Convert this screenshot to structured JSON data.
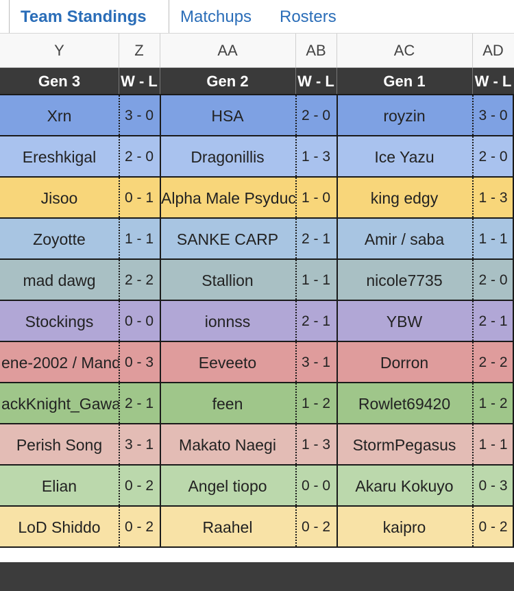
{
  "tabs": [
    {
      "label": "Team Standings",
      "active": true
    },
    {
      "label": "Matchups",
      "active": false
    },
    {
      "label": "Rosters",
      "active": false
    }
  ],
  "column_letters": [
    "Y",
    "Z",
    "AA",
    "AB",
    "AC",
    "AD"
  ],
  "header": {
    "gen3": "Gen 3",
    "wl1": "W - L",
    "gen2": "Gen 2",
    "wl2": "W - L",
    "gen1": "Gen 1",
    "wl3": "W - L"
  },
  "rows": [
    {
      "color": "#7ea1e3",
      "gen3": "Xrn",
      "gen3_rec": "3 - 0",
      "gen2": "HSA",
      "gen2_rec": "2 - 0",
      "gen1": "royzin",
      "gen1_rec": "3 - 0"
    },
    {
      "color": "#a9c2ee",
      "gen3": "Ereshkigal",
      "gen3_rec": "2 - 0",
      "gen2": "Dragonillis",
      "gen2_rec": "1 - 3",
      "gen1": "Ice Yazu",
      "gen1_rec": "2 - 0"
    },
    {
      "color": "#f8d67a",
      "gen3": "Jisoo",
      "gen3_rec": "0 - 1",
      "gen2": "Alpha Male Psyduck",
      "gen2_rec": "1 - 0",
      "gen1": "king edgy",
      "gen1_rec": "1 - 3"
    },
    {
      "color": "#a8c5e2",
      "gen3": "Zoyotte",
      "gen3_rec": "1 - 1",
      "gen2": "SANKE CARP",
      "gen2_rec": "2 - 1",
      "gen1": "Amir / saba",
      "gen1_rec": "1 - 1"
    },
    {
      "color": "#a9c0c4",
      "gen3": "mad dawg",
      "gen3_rec": "2 - 2",
      "gen2": "Stallion",
      "gen2_rec": "1 - 1",
      "gen1": "nicole7735",
      "gen1_rec": "2 - 0"
    },
    {
      "color": "#b1a7d6",
      "gen3": "Stockings",
      "gen3_rec": "0 - 0",
      "gen2": "ionnss",
      "gen2_rec": "2 - 1",
      "gen1": "YBW",
      "gen1_rec": "2 - 1"
    },
    {
      "color": "#df9c9c",
      "gen3": "ene-2002 / Mand",
      "gen3_rec": "0 - 3",
      "gen2": "Eeveeto",
      "gen2_rec": "3 - 1",
      "gen1": "Dorron",
      "gen1_rec": "2 - 2"
    },
    {
      "color": "#9fc68a",
      "gen3": "ackKnight_Gawa",
      "gen3_rec": "2 - 1",
      "gen2": "feen",
      "gen2_rec": "1 - 2",
      "gen1": "Rowlet69420",
      "gen1_rec": "1 - 2"
    },
    {
      "color": "#e3bcb5",
      "gen3": "Perish Song",
      "gen3_rec": "3 - 1",
      "gen2": "Makato Naegi",
      "gen2_rec": "1 - 3",
      "gen1": "StormPegasus",
      "gen1_rec": "1 - 1"
    },
    {
      "color": "#bbd8ac",
      "gen3": "Elian",
      "gen3_rec": "0 - 2",
      "gen2": "Angel tiopo",
      "gen2_rec": "0 - 0",
      "gen1": "Akaru Kokuyo",
      "gen1_rec": "0 - 3"
    },
    {
      "color": "#f8e2a6",
      "gen3": "LoD Shiddo",
      "gen3_rec": "0 - 2",
      "gen2": "Raahel",
      "gen2_rec": "0 - 2",
      "gen1": "kaipro",
      "gen1_rec": "0 - 2"
    }
  ]
}
